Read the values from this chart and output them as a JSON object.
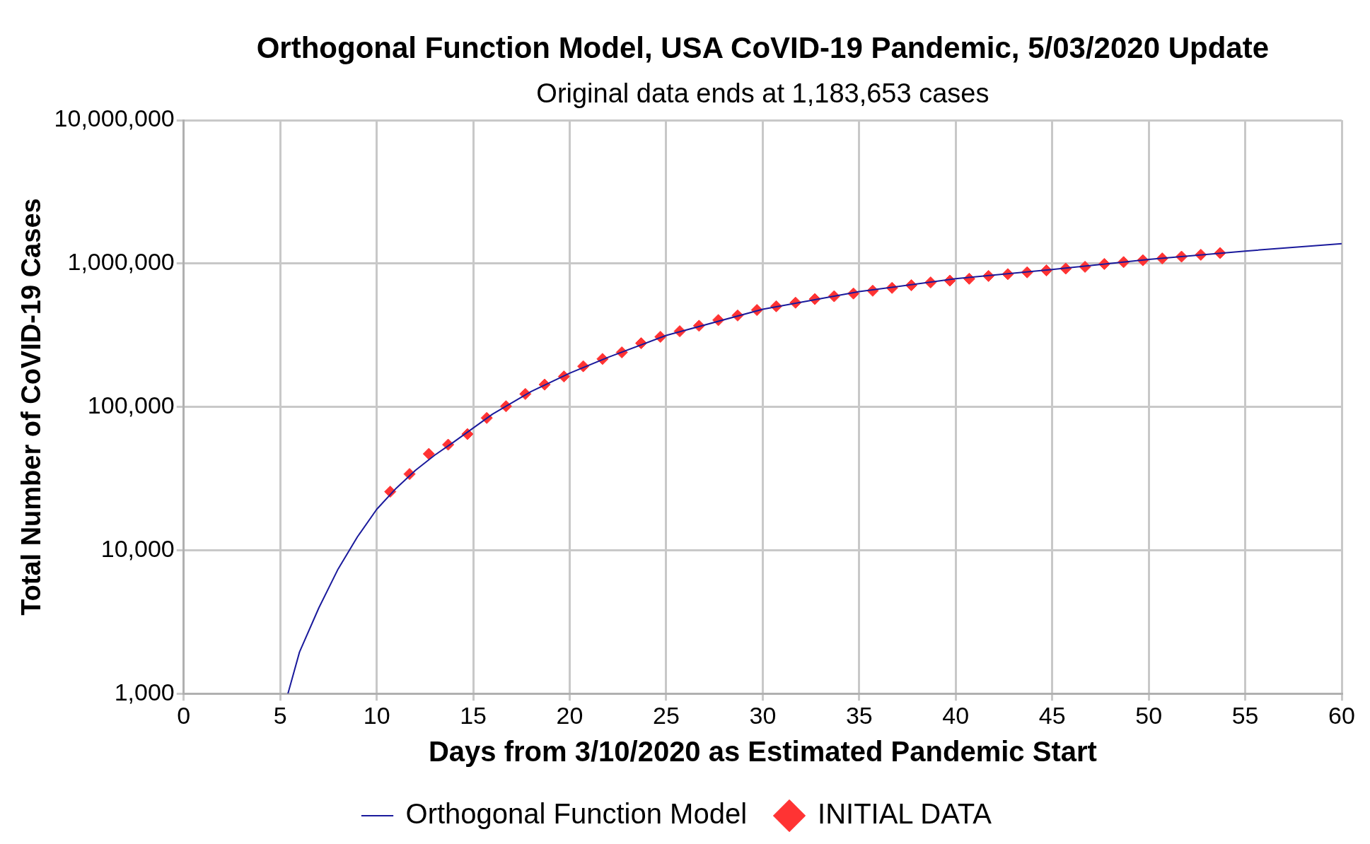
{
  "chart_data": {
    "type": "scatter",
    "title": "Orthogonal Function Model, USA CoVID-19 Pandemic, 5/03/2020 Update",
    "subtitle": "Original data ends at 1,183,653 cases",
    "xlabel": "Days from 3/10/2020 as Estimated Pandemic Start",
    "ylabel": "Total Number of CoVID-19 Cases",
    "xlim": [
      0,
      60
    ],
    "xticks": [
      0,
      5,
      10,
      15,
      20,
      25,
      30,
      35,
      40,
      45,
      50,
      55,
      60
    ],
    "ylim": [
      1000,
      10000000
    ],
    "yticks": [
      {
        "value": 1000,
        "label": "1,000"
      },
      {
        "value": 10000,
        "label": "10,000"
      },
      {
        "value": 100000,
        "label": "100,000"
      },
      {
        "value": 1000000,
        "label": "1,000,000"
      },
      {
        "value": 10000000,
        "label": "10,000,000"
      }
    ],
    "log": "y",
    "grid": true,
    "legend": "bottom",
    "series": [
      {
        "name": "Orthogonal Function Model",
        "type": "line",
        "color": "#1a1a9c",
        "marker": "none",
        "line_style": "solid",
        "x": [
          5.4,
          6,
          7,
          8,
          9,
          10,
          11,
          12,
          13,
          14,
          16,
          18,
          20,
          22,
          25,
          30,
          35,
          40,
          45,
          50,
          55,
          60
        ],
        "values": [
          1000,
          1950,
          3960,
          7400,
          12400,
          19300,
          27000,
          36000,
          46000,
          57000,
          89000,
          128000,
          172000,
          222000,
          315000,
          480000,
          637000,
          783000,
          908000,
          1069000,
          1222000,
          1375000
        ]
      },
      {
        "name": "INITIAL DATA",
        "color": "#ff3333",
        "marker": "diamond",
        "x": [
          10.7,
          11.7,
          12.7,
          13.7,
          14.7,
          15.7,
          16.7,
          17.7,
          18.7,
          19.7,
          20.7,
          21.7,
          22.7,
          23.7,
          24.7,
          25.7,
          26.7,
          27.7,
          28.7,
          29.7,
          30.7,
          31.7,
          32.7,
          33.7,
          34.7,
          35.7,
          36.7,
          37.7,
          38.7,
          39.7,
          40.7,
          41.7,
          42.7,
          43.7,
          44.7,
          45.7,
          46.7,
          47.7,
          48.7,
          49.7,
          50.7,
          51.7,
          52.7,
          53.7
        ],
        "values": [
          25600,
          34000,
          47000,
          54500,
          64600,
          83700,
          101000,
          123000,
          143000,
          163000,
          192000,
          216000,
          240000,
          278000,
          308000,
          337000,
          368000,
          403000,
          434000,
          474000,
          503000,
          533000,
          565000,
          591000,
          618000,
          646000,
          676000,
          706000,
          738000,
          760000,
          783000,
          819000,
          843000,
          868000,
          895000,
          922000,
          949000,
          993000,
          1023000,
          1054000,
          1085000,
          1117000,
          1151000,
          1184000
        ]
      }
    ]
  }
}
